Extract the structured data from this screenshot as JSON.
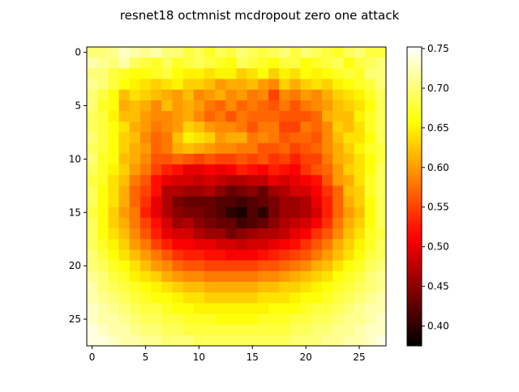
{
  "chart_data": {
    "type": "heatmap",
    "title": "resnet18 octmnist mcdropout zero one attack",
    "xlabel": "",
    "ylabel": "",
    "rows": 28,
    "cols": 28,
    "x_ticks": [
      0,
      5,
      10,
      15,
      20,
      25
    ],
    "y_ticks": [
      0,
      5,
      10,
      15,
      20,
      25
    ],
    "colormap": "hot",
    "colorbar": {
      "min": 0.375,
      "max": 0.752,
      "ticks": [
        0.4,
        0.45,
        0.5,
        0.55,
        0.6,
        0.65,
        0.7,
        0.75
      ],
      "tick_labels": [
        "0.40",
        "0.45",
        "0.50",
        "0.55",
        "0.60",
        "0.65",
        "0.70",
        "0.75"
      ]
    },
    "grid": false,
    "values": [
      [
        0.7,
        0.7,
        0.71,
        0.73,
        0.72,
        0.71,
        0.72,
        0.7,
        0.7,
        0.68,
        0.69,
        0.67,
        0.69,
        0.68,
        0.7,
        0.69,
        0.68,
        0.69,
        0.7,
        0.68,
        0.7,
        0.69,
        0.68,
        0.67,
        0.69,
        0.7,
        0.68,
        0.68
      ],
      [
        0.72,
        0.71,
        0.7,
        0.72,
        0.69,
        0.68,
        0.67,
        0.69,
        0.67,
        0.68,
        0.69,
        0.68,
        0.67,
        0.66,
        0.69,
        0.68,
        0.67,
        0.66,
        0.68,
        0.68,
        0.66,
        0.67,
        0.68,
        0.69,
        0.66,
        0.68,
        0.69,
        0.7
      ],
      [
        0.7,
        0.7,
        0.68,
        0.67,
        0.66,
        0.66,
        0.67,
        0.68,
        0.66,
        0.65,
        0.65,
        0.64,
        0.65,
        0.65,
        0.63,
        0.64,
        0.66,
        0.63,
        0.65,
        0.64,
        0.66,
        0.65,
        0.66,
        0.67,
        0.68,
        0.67,
        0.7,
        0.7
      ],
      [
        0.71,
        0.7,
        0.68,
        0.66,
        0.65,
        0.64,
        0.63,
        0.64,
        0.65,
        0.63,
        0.63,
        0.62,
        0.6,
        0.61,
        0.61,
        0.62,
        0.6,
        0.59,
        0.63,
        0.61,
        0.63,
        0.64,
        0.63,
        0.65,
        0.66,
        0.67,
        0.68,
        0.7
      ],
      [
        0.7,
        0.68,
        0.66,
        0.62,
        0.64,
        0.63,
        0.62,
        0.61,
        0.6,
        0.62,
        0.59,
        0.6,
        0.61,
        0.59,
        0.6,
        0.58,
        0.59,
        0.55,
        0.59,
        0.58,
        0.6,
        0.59,
        0.61,
        0.63,
        0.64,
        0.65,
        0.67,
        0.69
      ],
      [
        0.7,
        0.67,
        0.66,
        0.61,
        0.62,
        0.61,
        0.59,
        0.62,
        0.6,
        0.61,
        0.6,
        0.58,
        0.57,
        0.59,
        0.57,
        0.58,
        0.57,
        0.56,
        0.58,
        0.56,
        0.58,
        0.59,
        0.6,
        0.62,
        0.63,
        0.64,
        0.66,
        0.69
      ],
      [
        0.69,
        0.68,
        0.65,
        0.62,
        0.62,
        0.6,
        0.59,
        0.59,
        0.6,
        0.61,
        0.59,
        0.57,
        0.58,
        0.56,
        0.58,
        0.57,
        0.57,
        0.57,
        0.56,
        0.56,
        0.56,
        0.57,
        0.61,
        0.62,
        0.62,
        0.65,
        0.67,
        0.69
      ],
      [
        0.69,
        0.68,
        0.66,
        0.64,
        0.61,
        0.6,
        0.58,
        0.59,
        0.6,
        0.63,
        0.62,
        0.6,
        0.59,
        0.59,
        0.58,
        0.56,
        0.58,
        0.58,
        0.55,
        0.55,
        0.58,
        0.57,
        0.59,
        0.63,
        0.62,
        0.64,
        0.67,
        0.69
      ],
      [
        0.7,
        0.68,
        0.66,
        0.63,
        0.62,
        0.59,
        0.57,
        0.58,
        0.62,
        0.65,
        0.64,
        0.63,
        0.6,
        0.61,
        0.61,
        0.58,
        0.59,
        0.58,
        0.56,
        0.57,
        0.57,
        0.56,
        0.59,
        0.62,
        0.64,
        0.64,
        0.66,
        0.69
      ],
      [
        0.69,
        0.68,
        0.66,
        0.63,
        0.61,
        0.6,
        0.57,
        0.58,
        0.61,
        0.62,
        0.61,
        0.6,
        0.59,
        0.59,
        0.58,
        0.58,
        0.56,
        0.56,
        0.57,
        0.55,
        0.56,
        0.57,
        0.59,
        0.61,
        0.63,
        0.65,
        0.67,
        0.68
      ],
      [
        0.7,
        0.67,
        0.66,
        0.62,
        0.61,
        0.59,
        0.56,
        0.56,
        0.57,
        0.56,
        0.55,
        0.56,
        0.55,
        0.55,
        0.56,
        0.55,
        0.56,
        0.54,
        0.55,
        0.53,
        0.55,
        0.55,
        0.58,
        0.61,
        0.62,
        0.64,
        0.66,
        0.68
      ],
      [
        0.69,
        0.67,
        0.65,
        0.63,
        0.6,
        0.58,
        0.55,
        0.53,
        0.52,
        0.5,
        0.5,
        0.51,
        0.5,
        0.51,
        0.53,
        0.52,
        0.51,
        0.53,
        0.52,
        0.51,
        0.54,
        0.56,
        0.57,
        0.6,
        0.63,
        0.64,
        0.66,
        0.69
      ],
      [
        0.68,
        0.67,
        0.64,
        0.62,
        0.58,
        0.56,
        0.52,
        0.5,
        0.49,
        0.49,
        0.48,
        0.49,
        0.48,
        0.47,
        0.47,
        0.48,
        0.48,
        0.5,
        0.49,
        0.5,
        0.51,
        0.52,
        0.56,
        0.6,
        0.61,
        0.64,
        0.67,
        0.69
      ],
      [
        0.69,
        0.66,
        0.64,
        0.61,
        0.57,
        0.55,
        0.52,
        0.47,
        0.47,
        0.46,
        0.46,
        0.47,
        0.45,
        0.43,
        0.44,
        0.45,
        0.43,
        0.46,
        0.47,
        0.49,
        0.49,
        0.51,
        0.54,
        0.57,
        0.62,
        0.63,
        0.67,
        0.69
      ],
      [
        0.69,
        0.66,
        0.64,
        0.61,
        0.57,
        0.54,
        0.5,
        0.47,
        0.44,
        0.43,
        0.43,
        0.43,
        0.42,
        0.42,
        0.41,
        0.42,
        0.43,
        0.44,
        0.46,
        0.46,
        0.47,
        0.5,
        0.53,
        0.57,
        0.61,
        0.63,
        0.66,
        0.69
      ],
      [
        0.68,
        0.66,
        0.63,
        0.6,
        0.58,
        0.53,
        0.5,
        0.47,
        0.45,
        0.44,
        0.44,
        0.43,
        0.42,
        0.4,
        0.39,
        0.42,
        0.4,
        0.44,
        0.46,
        0.46,
        0.47,
        0.49,
        0.53,
        0.57,
        0.6,
        0.62,
        0.66,
        0.69
      ],
      [
        0.69,
        0.66,
        0.63,
        0.61,
        0.58,
        0.55,
        0.52,
        0.49,
        0.46,
        0.47,
        0.45,
        0.44,
        0.43,
        0.43,
        0.41,
        0.42,
        0.43,
        0.45,
        0.47,
        0.48,
        0.49,
        0.51,
        0.54,
        0.58,
        0.61,
        0.63,
        0.66,
        0.69
      ],
      [
        0.69,
        0.66,
        0.64,
        0.62,
        0.59,
        0.56,
        0.53,
        0.5,
        0.49,
        0.49,
        0.47,
        0.46,
        0.46,
        0.44,
        0.45,
        0.46,
        0.47,
        0.47,
        0.48,
        0.5,
        0.51,
        0.54,
        0.56,
        0.59,
        0.62,
        0.64,
        0.67,
        0.68
      ],
      [
        0.69,
        0.67,
        0.65,
        0.63,
        0.6,
        0.58,
        0.55,
        0.53,
        0.51,
        0.51,
        0.5,
        0.5,
        0.49,
        0.49,
        0.48,
        0.49,
        0.49,
        0.5,
        0.51,
        0.52,
        0.54,
        0.56,
        0.58,
        0.61,
        0.63,
        0.65,
        0.67,
        0.69
      ],
      [
        0.7,
        0.68,
        0.66,
        0.64,
        0.62,
        0.6,
        0.58,
        0.56,
        0.54,
        0.53,
        0.53,
        0.52,
        0.52,
        0.51,
        0.51,
        0.51,
        0.52,
        0.53,
        0.54,
        0.55,
        0.56,
        0.58,
        0.6,
        0.62,
        0.64,
        0.66,
        0.68,
        0.69
      ],
      [
        0.7,
        0.69,
        0.67,
        0.66,
        0.64,
        0.62,
        0.6,
        0.59,
        0.57,
        0.56,
        0.56,
        0.55,
        0.55,
        0.55,
        0.55,
        0.55,
        0.56,
        0.56,
        0.57,
        0.58,
        0.59,
        0.61,
        0.62,
        0.64,
        0.66,
        0.67,
        0.69,
        0.7
      ],
      [
        0.71,
        0.7,
        0.68,
        0.67,
        0.65,
        0.64,
        0.63,
        0.61,
        0.6,
        0.59,
        0.59,
        0.58,
        0.58,
        0.58,
        0.58,
        0.58,
        0.59,
        0.59,
        0.6,
        0.61,
        0.62,
        0.63,
        0.64,
        0.66,
        0.67,
        0.68,
        0.7,
        0.71
      ],
      [
        0.72,
        0.7,
        0.69,
        0.68,
        0.67,
        0.66,
        0.65,
        0.64,
        0.63,
        0.62,
        0.62,
        0.61,
        0.61,
        0.61,
        0.61,
        0.61,
        0.62,
        0.62,
        0.63,
        0.63,
        0.64,
        0.65,
        0.66,
        0.67,
        0.68,
        0.69,
        0.7,
        0.71
      ],
      [
        0.72,
        0.71,
        0.7,
        0.69,
        0.68,
        0.67,
        0.66,
        0.66,
        0.65,
        0.64,
        0.64,
        0.63,
        0.63,
        0.63,
        0.63,
        0.63,
        0.64,
        0.64,
        0.64,
        0.65,
        0.66,
        0.66,
        0.67,
        0.68,
        0.69,
        0.7,
        0.71,
        0.72
      ],
      [
        0.73,
        0.72,
        0.71,
        0.7,
        0.69,
        0.68,
        0.68,
        0.67,
        0.66,
        0.66,
        0.65,
        0.65,
        0.65,
        0.65,
        0.65,
        0.65,
        0.65,
        0.66,
        0.66,
        0.66,
        0.67,
        0.68,
        0.68,
        0.69,
        0.7,
        0.71,
        0.72,
        0.72
      ],
      [
        0.73,
        0.72,
        0.72,
        0.71,
        0.7,
        0.69,
        0.69,
        0.68,
        0.68,
        0.67,
        0.67,
        0.67,
        0.66,
        0.66,
        0.66,
        0.66,
        0.67,
        0.67,
        0.67,
        0.68,
        0.68,
        0.69,
        0.69,
        0.7,
        0.71,
        0.71,
        0.72,
        0.73
      ],
      [
        0.74,
        0.73,
        0.72,
        0.72,
        0.71,
        0.7,
        0.7,
        0.69,
        0.69,
        0.68,
        0.68,
        0.68,
        0.68,
        0.68,
        0.68,
        0.68,
        0.68,
        0.68,
        0.68,
        0.69,
        0.69,
        0.7,
        0.7,
        0.71,
        0.71,
        0.72,
        0.73,
        0.73
      ],
      [
        0.74,
        0.74,
        0.73,
        0.72,
        0.72,
        0.71,
        0.71,
        0.7,
        0.7,
        0.7,
        0.69,
        0.69,
        0.69,
        0.69,
        0.69,
        0.69,
        0.69,
        0.69,
        0.69,
        0.7,
        0.7,
        0.7,
        0.71,
        0.71,
        0.72,
        0.72,
        0.73,
        0.74
      ]
    ]
  }
}
